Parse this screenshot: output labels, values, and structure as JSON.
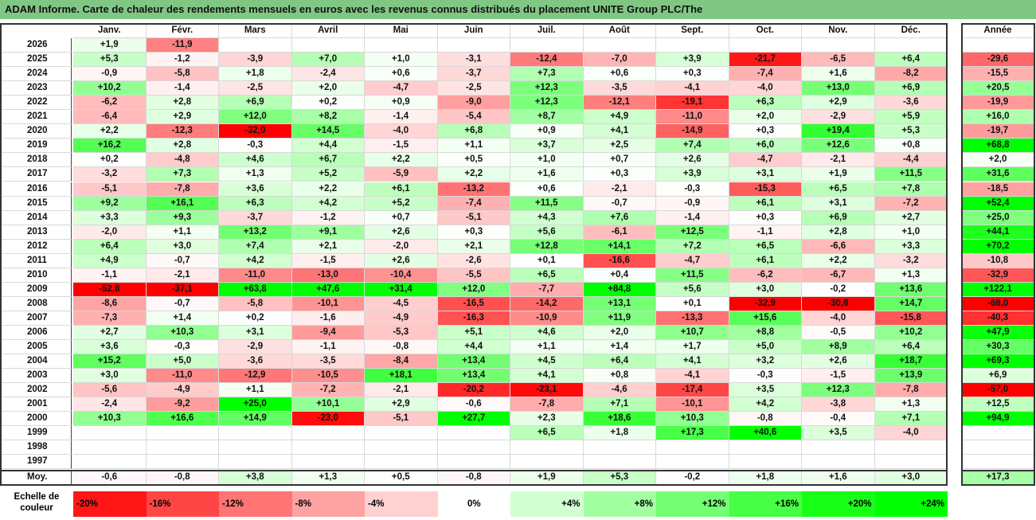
{
  "title": "ADAM Informe. Carte de chaleur des rendements mensuels en euros avec les revenus connus distribués du placement UNITE Group PLC/The",
  "months": [
    "Janv.",
    "Févr.",
    "Mars",
    "Avril",
    "Mai",
    "Juin",
    "Juil.",
    "Août",
    "Sept.",
    "Oct.",
    "Nov.",
    "Déc."
  ],
  "year_header": "Année",
  "avg_label": "Moy.",
  "scale_label": "Echelle de couleur",
  "colors": {
    "negative": "#ff0000",
    "neutral": "#ffffff",
    "positive": "#00ff00",
    "title_bg": "#81c784"
  },
  "chart_data": {
    "type": "heatmap",
    "rows": [
      {
        "year": "2026",
        "months": [
          "+1,9",
          "-11,9",
          "",
          "",
          "",
          "",
          "",
          "",
          "",
          "",
          "",
          ""
        ],
        "annual": ""
      },
      {
        "year": "2025",
        "months": [
          "+5,3",
          "-1,2",
          "-3,9",
          "+7,0",
          "+1,0",
          "-3,1",
          "-12,4",
          "-7,0",
          "+3,9",
          "-21,7",
          "-6,5",
          "+6,4"
        ],
        "annual": "-29,6"
      },
      {
        "year": "2024",
        "months": [
          "-0,9",
          "-5,8",
          "+1,8",
          "-2,4",
          "+0,6",
          "-3,7",
          "+7,3",
          "+0,6",
          "+0,3",
          "-7,4",
          "+1,6",
          "-8,2"
        ],
        "annual": "-15,5"
      },
      {
        "year": "2023",
        "months": [
          "+10,2",
          "-1,4",
          "-2,5",
          "+2,0",
          "-4,7",
          "-2,5",
          "+12,3",
          "-3,5",
          "-4,1",
          "-4,0",
          "+13,0",
          "+6,9"
        ],
        "annual": "+20,5"
      },
      {
        "year": "2022",
        "months": [
          "-6,2",
          "+2,8",
          "+6,9",
          "+0,2",
          "+0,9",
          "-9,0",
          "+12,3",
          "-12,1",
          "-19,1",
          "+6,3",
          "+2,9",
          "-3,6"
        ],
        "annual": "-19,9"
      },
      {
        "year": "2021",
        "months": [
          "-6,4",
          "+2,9",
          "+12,0",
          "+8,2",
          "-1,4",
          "-5,4",
          "+8,7",
          "+4,9",
          "-11,0",
          "+2,0",
          "-2,9",
          "+5,9"
        ],
        "annual": "+16,0"
      },
      {
        "year": "2020",
        "months": [
          "+2,2",
          "-12,3",
          "-32,0",
          "+14,5",
          "-4,0",
          "+6,8",
          "+0,9",
          "+4,1",
          "-14,9",
          "+0,3",
          "+19,4",
          "+5,3"
        ],
        "annual": "-19,7"
      },
      {
        "year": "2019",
        "months": [
          "+16,2",
          "+2,8",
          "-0,3",
          "+4,4",
          "-1,5",
          "+1,1",
          "+3,7",
          "+2,5",
          "+7,4",
          "+6,0",
          "+12,6",
          "+0,8"
        ],
        "annual": "+68,8"
      },
      {
        "year": "2018",
        "months": [
          "+0,2",
          "-4,8",
          "+4,6",
          "+6,7",
          "+2,2",
          "+0,5",
          "+1,0",
          "+0,7",
          "+2,6",
          "-4,7",
          "-2,1",
          "-4,4"
        ],
        "annual": "+2,0"
      },
      {
        "year": "2017",
        "months": [
          "-3,2",
          "+7,3",
          "+1,3",
          "+5,2",
          "-5,9",
          "+2,2",
          "+1,6",
          "+0,3",
          "+3,9",
          "+3,1",
          "+1,9",
          "+11,5"
        ],
        "annual": "+31,6"
      },
      {
        "year": "2016",
        "months": [
          "-5,1",
          "-7,8",
          "+3,6",
          "+2,2",
          "+6,1",
          "-13,2",
          "+0,6",
          "-2,1",
          "-0,3",
          "-15,3",
          "+6,5",
          "+7,8"
        ],
        "annual": "-18,5"
      },
      {
        "year": "2015",
        "months": [
          "+9,2",
          "+16,1",
          "+6,3",
          "+4,2",
          "+5,2",
          "-7,4",
          "+11,5",
          "-0,7",
          "-0,9",
          "+6,1",
          "+3,1",
          "-7,2"
        ],
        "annual": "+52,4"
      },
      {
        "year": "2014",
        "months": [
          "+3,3",
          "+9,3",
          "-3,7",
          "-1,2",
          "+0,7",
          "-5,1",
          "+4,3",
          "+7,6",
          "-1,4",
          "+0,3",
          "+6,9",
          "+2,7"
        ],
        "annual": "+25,0"
      },
      {
        "year": "2013",
        "months": [
          "-2,0",
          "+1,1",
          "+13,2",
          "+9,1",
          "+2,6",
          "+0,3",
          "+5,6",
          "-6,1",
          "+12,5",
          "-1,1",
          "+2,8",
          "+1,0"
        ],
        "annual": "+44,1"
      },
      {
        "year": "2012",
        "months": [
          "+6,4",
          "+3,0",
          "+7,4",
          "+2,1",
          "-2,0",
          "+2,1",
          "+12,8",
          "+14,1",
          "+7,2",
          "+6,5",
          "-6,6",
          "+3,3"
        ],
        "annual": "+70,2"
      },
      {
        "year": "2011",
        "months": [
          "+4,9",
          "-0,7",
          "+4,2",
          "-1,5",
          "+2,6",
          "-2,6",
          "+0,1",
          "-16,6",
          "-4,7",
          "+6,1",
          "+2,2",
          "-3,2"
        ],
        "annual": "-10,8"
      },
      {
        "year": "2010",
        "months": [
          "-1,1",
          "-2,1",
          "-11,0",
          "-13,0",
          "-10,4",
          "-5,5",
          "+6,5",
          "+0,4",
          "+11,5",
          "-6,2",
          "-6,7",
          "+1,3"
        ],
        "annual": "-32,9"
      },
      {
        "year": "2009",
        "months": [
          "-52,8",
          "-37,1",
          "+63,8",
          "+47,6",
          "+31,4",
          "+12,0",
          "-7,7",
          "+84,8",
          "+5,6",
          "+3,0",
          "-0,2",
          "+13,6"
        ],
        "annual": "+122,1"
      },
      {
        "year": "2008",
        "months": [
          "-8,6",
          "-0,7",
          "-5,8",
          "-10,1",
          "-4,5",
          "-16,5",
          "-14,2",
          "+13,1",
          "+0,1",
          "-32,9",
          "-30,8",
          "+14,7"
        ],
        "annual": "-68,0"
      },
      {
        "year": "2007",
        "months": [
          "-7,3",
          "+1,4",
          "+0,2",
          "-1,6",
          "-4,9",
          "-16,3",
          "-10,9",
          "+11,9",
          "-13,3",
          "+15,6",
          "-4,0",
          "-15,8"
        ],
        "annual": "-40,3"
      },
      {
        "year": "2006",
        "months": [
          "+2,7",
          "+10,3",
          "+3,1",
          "-9,4",
          "-5,3",
          "+5,1",
          "+4,6",
          "+2,0",
          "+10,7",
          "+8,8",
          "-0,5",
          "+10,2"
        ],
        "annual": "+47,9"
      },
      {
        "year": "2005",
        "months": [
          "+3,6",
          "-0,3",
          "-2,9",
          "-1,1",
          "-0,8",
          "+4,4",
          "+1,1",
          "+1,4",
          "+1,7",
          "+5,0",
          "+8,9",
          "+6,4"
        ],
        "annual": "+30,3"
      },
      {
        "year": "2004",
        "months": [
          "+15,2",
          "+5,0",
          "-3,6",
          "-3,5",
          "-8,4",
          "+13,4",
          "+4,5",
          "+6,4",
          "+4,1",
          "+3,2",
          "+2,6",
          "+18,7"
        ],
        "annual": "+69,3"
      },
      {
        "year": "2003",
        "months": [
          "+3,0",
          "-11,0",
          "-12,9",
          "-10,5",
          "+18,1",
          "+13,4",
          "+4,1",
          "+0,8",
          "-4,1",
          "-0,3",
          "-1,5",
          "+13,9"
        ],
        "annual": "+6,9"
      },
      {
        "year": "2002",
        "months": [
          "-5,6",
          "-4,9",
          "+1,1",
          "-7,2",
          "-2,1",
          "-20,2",
          "-23,1",
          "-4,6",
          "-17,4",
          "+3,5",
          "+12,3",
          "-7,8"
        ],
        "annual": "-57,0"
      },
      {
        "year": "2001",
        "months": [
          "-2,4",
          "-9,2",
          "+25,0",
          "+10,1",
          "+2,9",
          "-0,6",
          "-7,8",
          "+7,1",
          "-10,1",
          "+4,2",
          "-3,8",
          "+1,3"
        ],
        "annual": "+12,5"
      },
      {
        "year": "2000",
        "months": [
          "+10,3",
          "+16,6",
          "+14,9",
          "-23,0",
          "-5,1",
          "+27,7",
          "+2,3",
          "+18,6",
          "+10,3",
          "-0,8",
          "-0,4",
          "+7,1"
        ],
        "annual": "+94,9"
      },
      {
        "year": "1999",
        "months": [
          "",
          "",
          "",
          "",
          "",
          "",
          "+6,5",
          "+1,8",
          "+17,3",
          "+40,6",
          "+3,5",
          "-4,0"
        ],
        "annual": ""
      },
      {
        "year": "1998",
        "months": [
          "",
          "",
          "",
          "",
          "",
          "",
          "",
          "",
          "",
          "",
          "",
          ""
        ],
        "annual": ""
      },
      {
        "year": "1997",
        "months": [
          "",
          "",
          "",
          "",
          "",
          "",
          "",
          "",
          "",
          "",
          "",
          ""
        ],
        "annual": ""
      }
    ],
    "averages": {
      "months": [
        "-0,6",
        "-0,8",
        "+3,8",
        "+1,3",
        "+0,5",
        "-0,8",
        "+1,9",
        "+5,3",
        "-0,2",
        "+1,8",
        "+1,6",
        "+3,0"
      ],
      "annual": "+17,3"
    },
    "color_scale": [
      "-20%",
      "-16%",
      "-12%",
      "-8%",
      "-4%",
      "0%",
      "+4%",
      "+8%",
      "+12%",
      "+16%",
      "+20%",
      "+24%"
    ]
  }
}
